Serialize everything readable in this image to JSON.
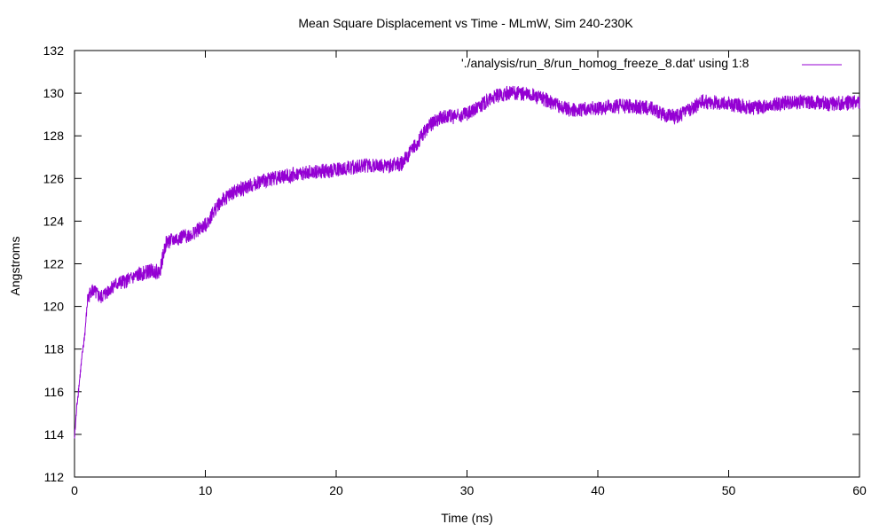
{
  "chart_data": {
    "type": "line",
    "title": "Mean Square Displacement vs Time - MLmW, Sim 240-230K",
    "xlabel": "Time (ns)",
    "ylabel": "Angstroms",
    "xlim": [
      0,
      60
    ],
    "ylim": [
      112,
      132
    ],
    "x_ticks": [
      0,
      10,
      20,
      30,
      40,
      50,
      60
    ],
    "y_ticks": [
      112,
      114,
      116,
      118,
      120,
      122,
      124,
      126,
      128,
      130,
      132
    ],
    "grid": false,
    "legend_position": "top-right",
    "series": [
      {
        "name": "'./analysis/run_8/run_homog_freeze_8.dat' using 1:8",
        "color": "#9400d3",
        "x": [
          0,
          0.2,
          0.5,
          0.8,
          1.0,
          1.3,
          2.0,
          3.0,
          4.0,
          5.0,
          6.0,
          6.5,
          7.0,
          8.0,
          9.0,
          10.0,
          11.0,
          12.0,
          14.0,
          15.0,
          17.0,
          20.0,
          22.0,
          24.0,
          25.0,
          26.0,
          27.0,
          28.0,
          29.0,
          30.0,
          31.0,
          32.0,
          33.0,
          34.0,
          35.0,
          36.0,
          37.0,
          38.0,
          40.0,
          42.0,
          44.0,
          45.0,
          46.0,
          47.0,
          48.0,
          50.0,
          52.0,
          54.0,
          55.0,
          56.0,
          58.0,
          60.0
        ],
        "y": [
          113.8,
          115.5,
          117.2,
          118.8,
          120.3,
          120.8,
          120.4,
          121.0,
          121.2,
          121.5,
          121.7,
          121.6,
          123.0,
          123.2,
          123.4,
          123.8,
          124.8,
          125.3,
          125.8,
          126.0,
          126.2,
          126.4,
          126.6,
          126.6,
          126.7,
          127.5,
          128.4,
          128.9,
          128.9,
          129.0,
          129.4,
          129.8,
          130.0,
          130.0,
          129.9,
          129.7,
          129.4,
          129.2,
          129.3,
          129.4,
          129.3,
          129.0,
          128.9,
          129.2,
          129.6,
          129.5,
          129.3,
          129.5,
          129.6,
          129.6,
          129.5,
          129.6
        ],
        "noise_amplitude": 0.35
      }
    ]
  }
}
